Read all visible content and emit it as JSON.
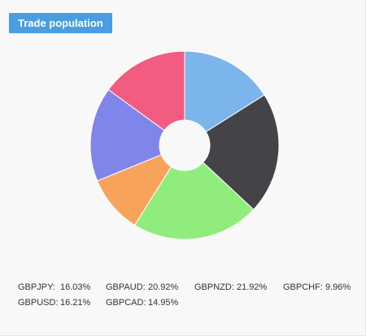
{
  "header": {
    "title": "Trade population"
  },
  "chart_data": {
    "type": "pie",
    "donut": true,
    "title": "Trade population",
    "slices": [
      {
        "label": "GBPJPY",
        "value": 16.03,
        "display": "16.03%",
        "color": "#7cb5ec"
      },
      {
        "label": "GBPAUD",
        "value": 20.92,
        "display": "20.92%",
        "color": "#434348"
      },
      {
        "label": "GBPNZD",
        "value": 21.92,
        "display": "21.92%",
        "color": "#90ed7d"
      },
      {
        "label": "GBPCHF",
        "value": 9.96,
        "display": "9.96%",
        "color": "#f7a35c"
      },
      {
        "label": "GBPUSD",
        "value": 16.21,
        "display": "16.21%",
        "color": "#8085e9"
      },
      {
        "label": "GBPCAD",
        "value": 14.95,
        "display": "14.95%",
        "color": "#f15c80"
      }
    ]
  }
}
